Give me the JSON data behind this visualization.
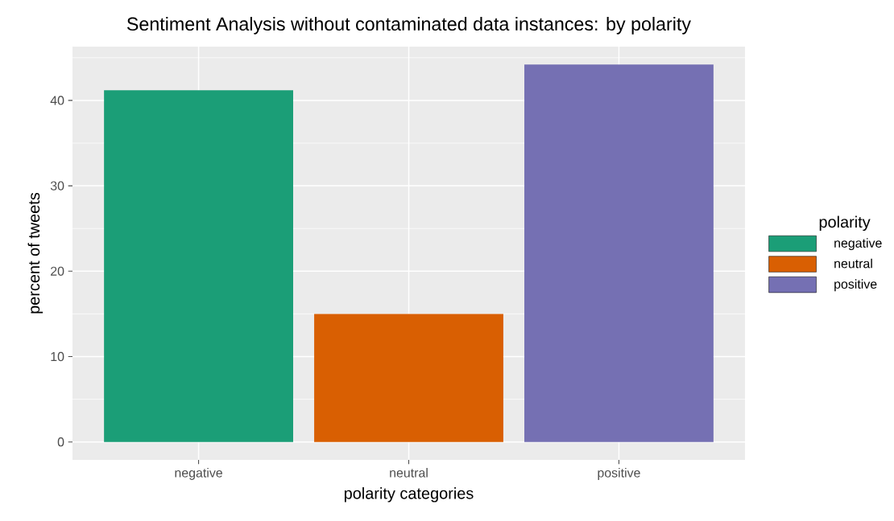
{
  "chart_data": {
    "type": "bar",
    "title": "Sentiment Analysis without contaminated data instances: by polarity",
    "xlabel": "polarity categories",
    "ylabel": "percent of tweets",
    "legend_title": "polarity",
    "categories": [
      "negative",
      "neutral",
      "positive"
    ],
    "series": [
      {
        "name": "negative",
        "color": "#1b9e77",
        "values": [
          41.2,
          null,
          null
        ]
      },
      {
        "name": "neutral",
        "color": "#d95f02",
        "values": [
          null,
          15.0,
          null
        ]
      },
      {
        "name": "positive",
        "color": "#7570b3",
        "values": [
          null,
          null,
          44.2
        ]
      }
    ],
    "ylim": [
      -2.1,
      46.3
    ],
    "yticks": [
      0,
      10,
      20,
      30,
      40
    ],
    "grid": true,
    "legend": "right"
  }
}
